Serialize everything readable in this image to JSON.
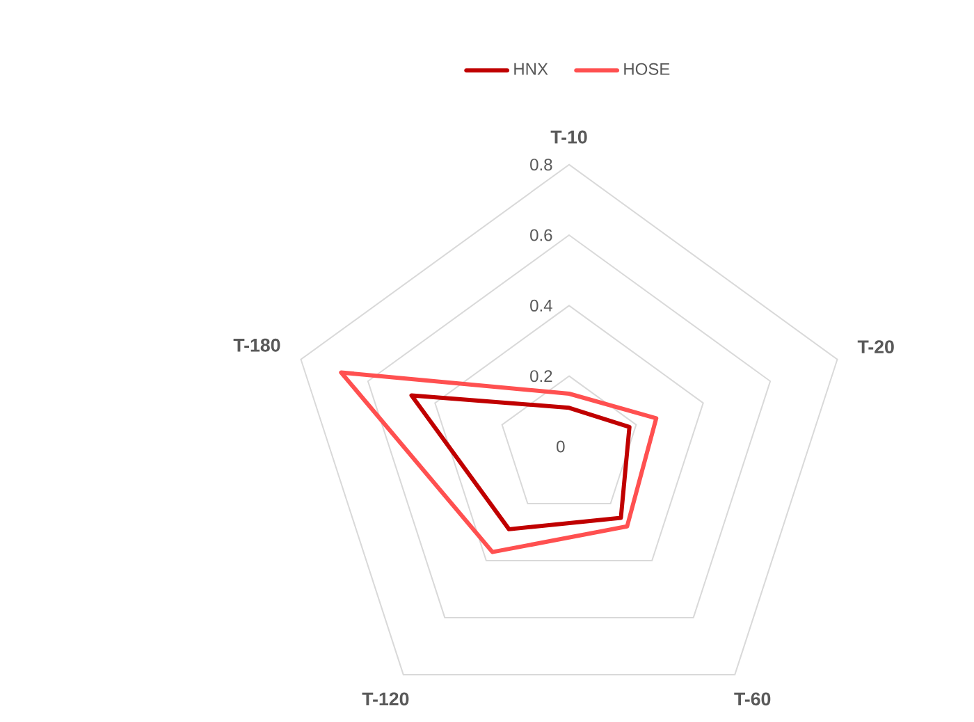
{
  "chart_data": {
    "type": "radar",
    "categories": [
      "T-10",
      "T-20",
      "T-60",
      "T-120",
      "T-180"
    ],
    "ylim": [
      0,
      0.8
    ],
    "yticks": [
      0,
      0.2,
      0.4,
      0.6,
      0.8
    ],
    "legend": "top",
    "series": [
      {
        "name": "HNX",
        "color": "#c00000",
        "values": [
          0.11,
          0.18,
          0.25,
          0.29,
          0.47
        ]
      },
      {
        "name": "HOSE",
        "color": "#ff5050",
        "values": [
          0.15,
          0.26,
          0.28,
          0.37,
          0.68
        ]
      }
    ]
  }
}
